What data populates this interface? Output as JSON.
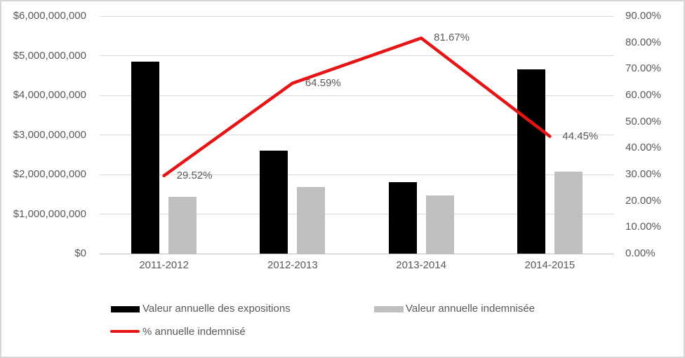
{
  "chart_data": {
    "type": "bar",
    "subtype": "combo-bar-line",
    "title": "",
    "categories": [
      "2011-2012",
      "2012-2013",
      "2013-2014",
      "2014-2015"
    ],
    "series": [
      {
        "name": "Valeur annuelle des expositions",
        "kind": "bar",
        "axis": "left",
        "color_key": "bar_black",
        "values": [
          4850000000,
          2600000000,
          1800000000,
          4650000000
        ]
      },
      {
        "name": "Valeur annuelle indemnisée",
        "kind": "bar",
        "axis": "left",
        "color_key": "bar_gray",
        "values": [
          1430000000,
          1680000000,
          1470000000,
          2070000000
        ]
      },
      {
        "name": "% annuelle indemnisé",
        "kind": "line",
        "axis": "right",
        "color_key": "line_red",
        "values": [
          29.52,
          64.59,
          81.67,
          44.45
        ],
        "point_labels": [
          "29.52%",
          "64.59%",
          "81.67%",
          "44.45%"
        ]
      }
    ],
    "left_axis": {
      "min": 0,
      "max": 6000000000,
      "step": 1000000000,
      "tick_labels_top_to_bottom": [
        "$6,000,000,000",
        "$5,000,000,000",
        "$4,000,000,000",
        "$3,000,000,000",
        "$2,000,000,000",
        "$1,000,000,000",
        "$0"
      ]
    },
    "right_axis": {
      "min": 0,
      "max": 90,
      "step": 10,
      "tick_labels_top_to_bottom": [
        "90.00%",
        "80.00%",
        "70.00%",
        "60.00%",
        "50.00%",
        "40.00%",
        "30.00%",
        "20.00%",
        "10.00%",
        "0.00%"
      ]
    },
    "grid": true,
    "legend_position": "bottom-left"
  },
  "colors": {
    "bar_black": "#000000",
    "bar_gray": "#bfbfbf",
    "line_red": "#e61414",
    "axis_text": "#595959",
    "gridline": "#d9d9d9",
    "axis_line": "#bfbfbf",
    "border": "#d6d6d6"
  }
}
